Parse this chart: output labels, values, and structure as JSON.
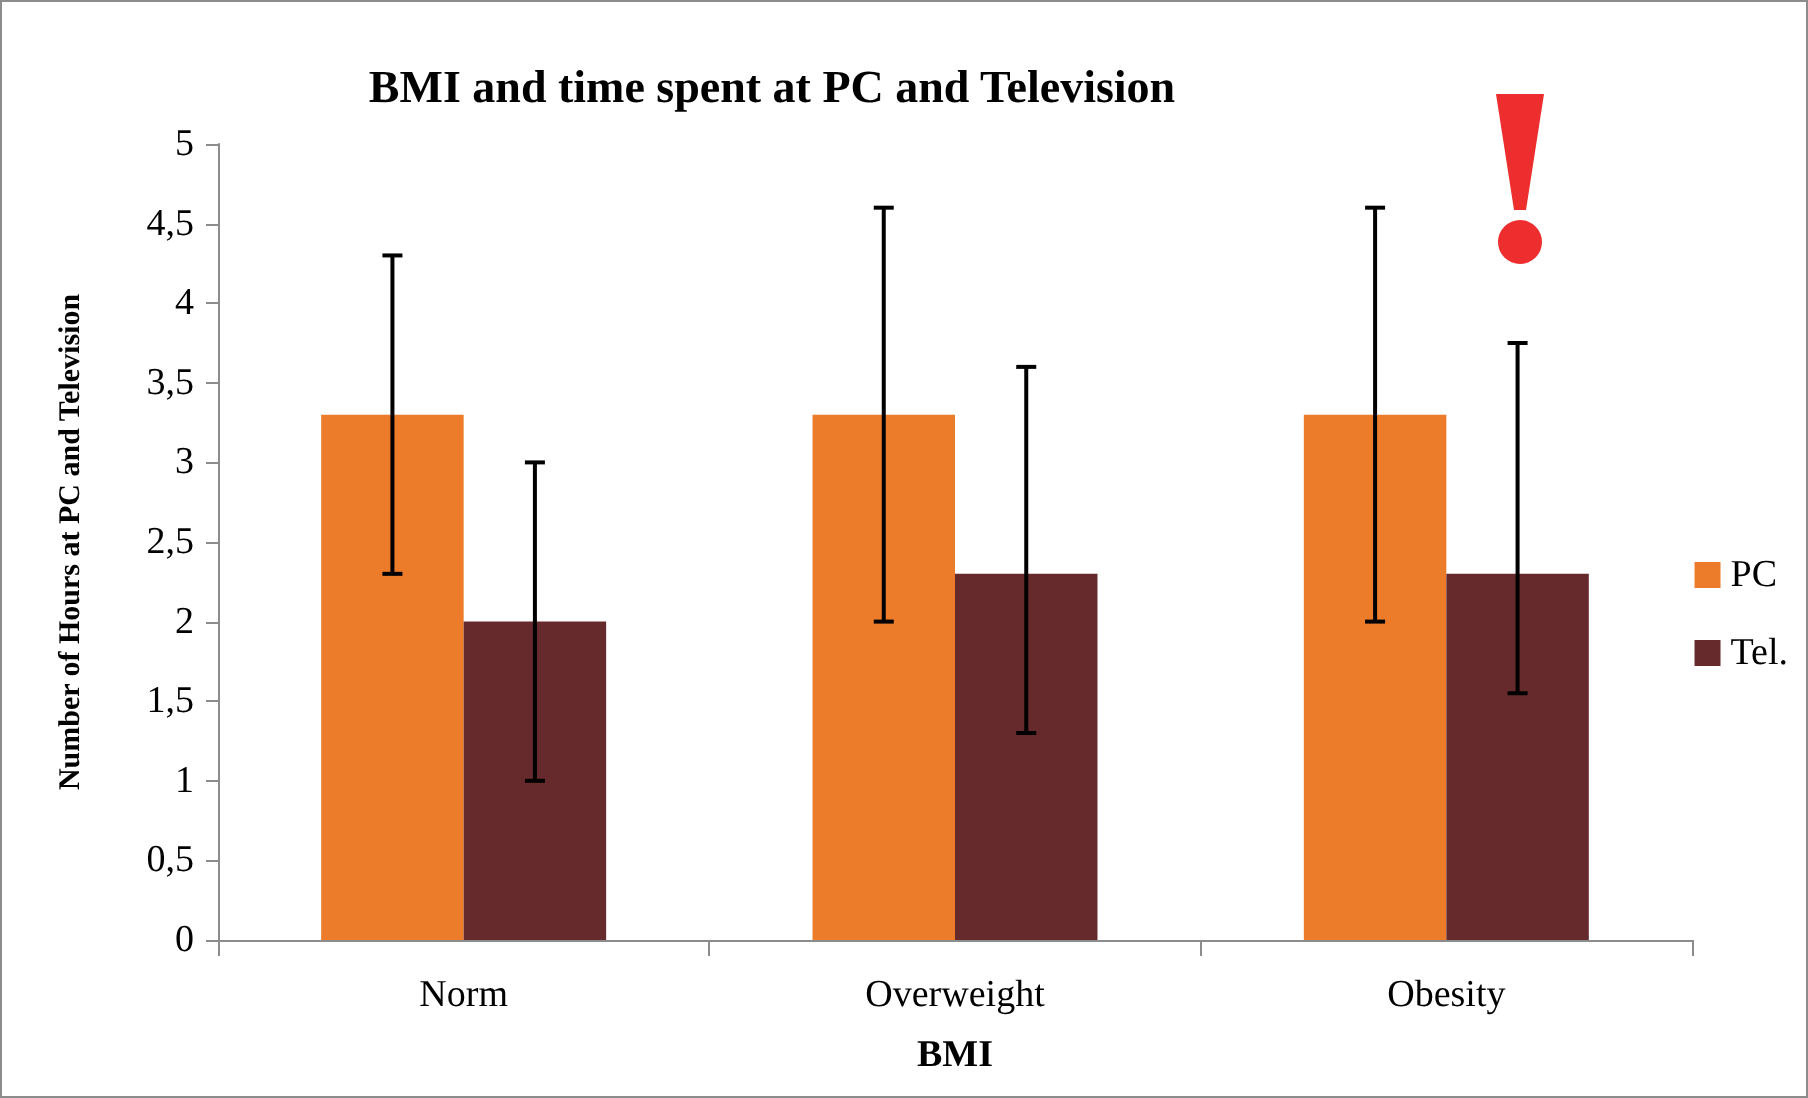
{
  "chart_data": {
    "type": "bar",
    "title": "BMI and time spent at PC and Television",
    "xlabel": "BMI",
    "ylabel": "Number of Hours at PC and Television",
    "categories": [
      "Norm",
      "Overweight",
      "Obesity"
    ],
    "series": [
      {
        "name": "PC",
        "color": "#ec7c2a",
        "values": [
          3.3,
          3.3,
          3.3
        ],
        "errors": [
          [
            2.3,
            4.3
          ],
          [
            2.0,
            4.6
          ],
          [
            2.0,
            4.6
          ]
        ]
      },
      {
        "name": "Tel.",
        "color": "#672a2c",
        "values": [
          2.0,
          2.3,
          2.3
        ],
        "errors": [
          [
            1.0,
            3.0
          ],
          [
            1.3,
            3.6
          ],
          [
            1.55,
            3.75
          ]
        ]
      }
    ],
    "ylim": [
      0,
      5
    ],
    "yticks": [
      0,
      {
        "value": 0.5,
        "label": "0,5"
      },
      1,
      {
        "value": 1.5,
        "label": "1,5"
      },
      2,
      {
        "value": 2.5,
        "label": "2,5"
      },
      3,
      {
        "value": 3.5,
        "label": "3,5"
      },
      4,
      {
        "value": 4.5,
        "label": "4,5"
      },
      5
    ],
    "grid": false,
    "legend": "right"
  }
}
